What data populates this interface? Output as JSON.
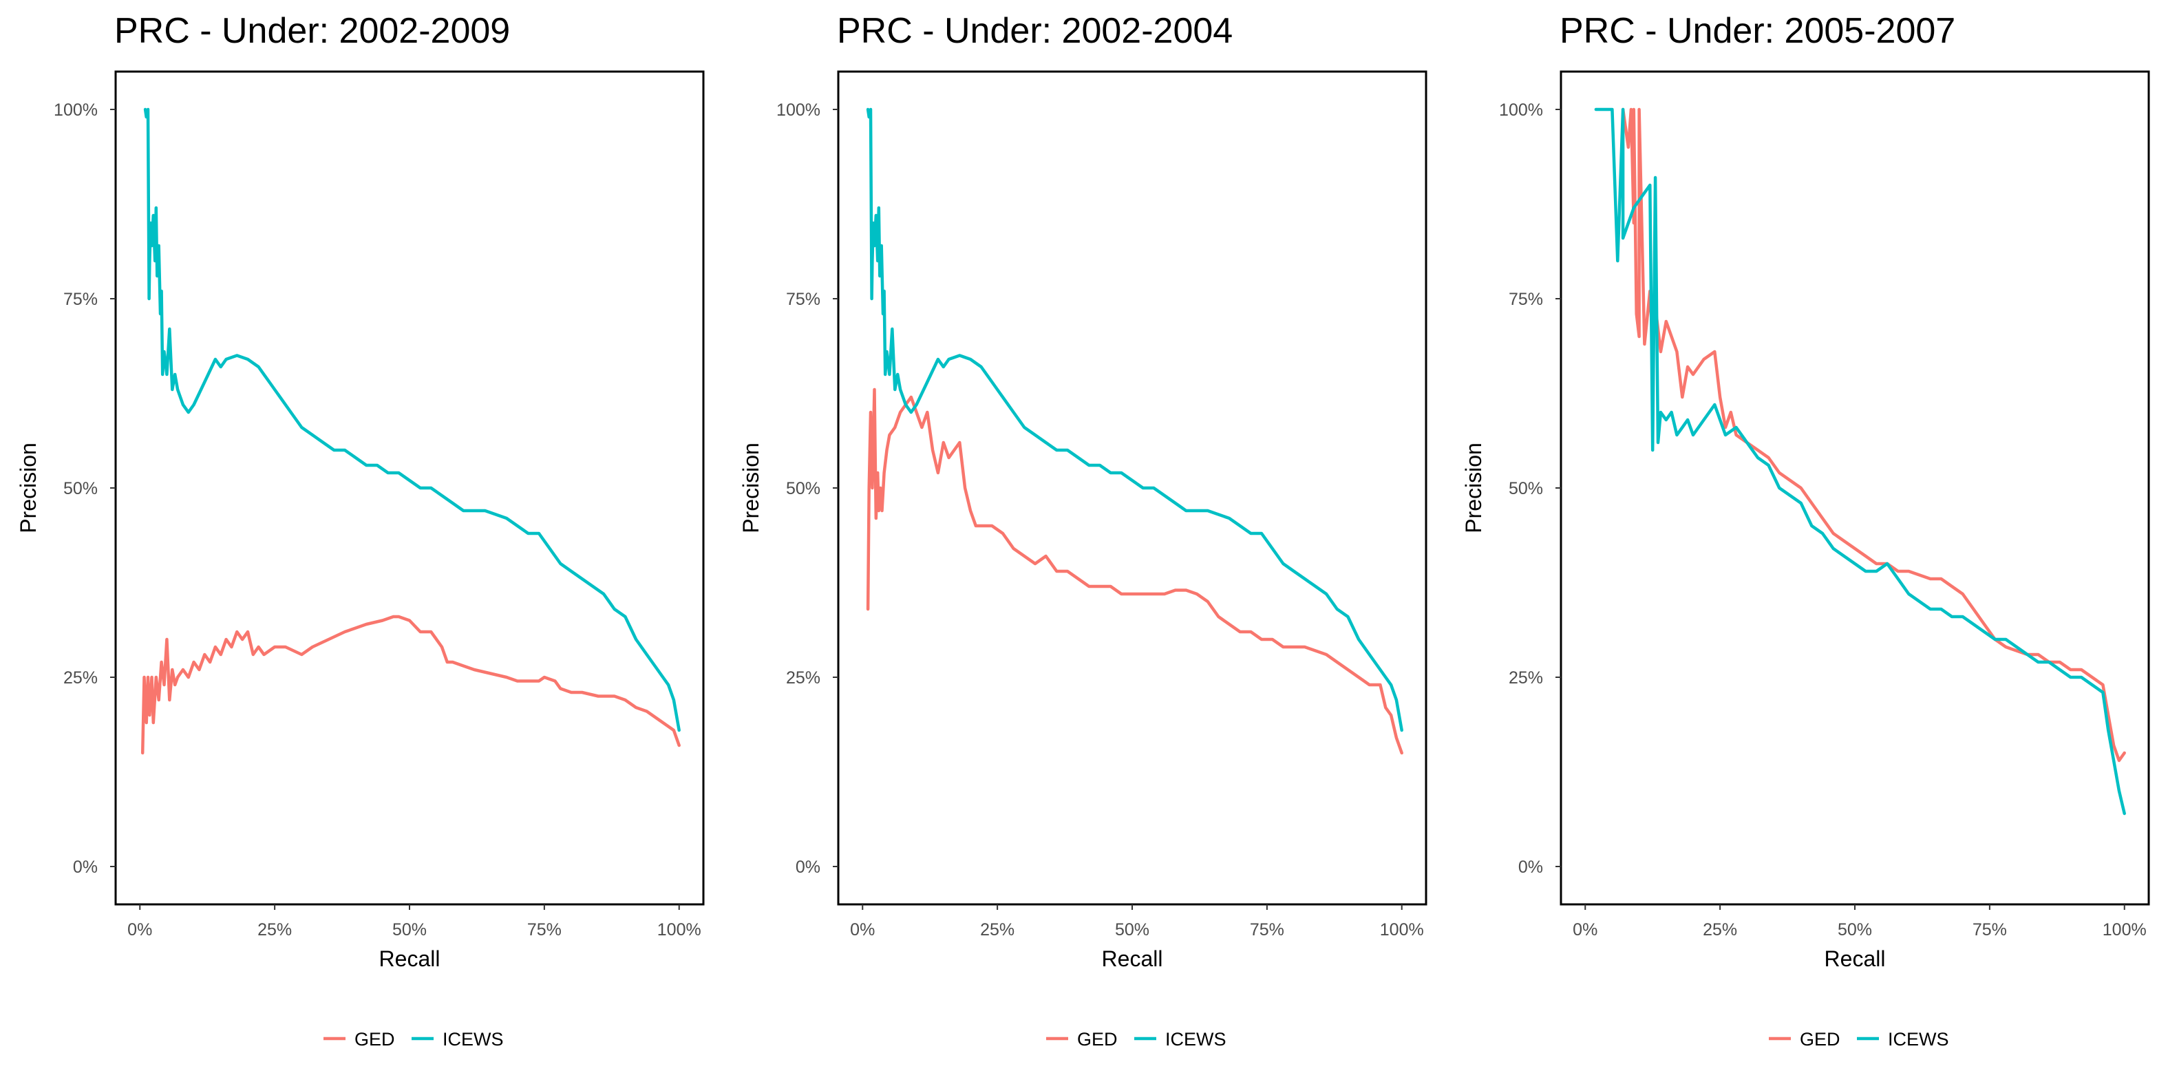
{
  "colors": {
    "GED": "#F8766D",
    "ICEWS": "#00BFC4"
  },
  "chart_data": [
    {
      "type": "line",
      "title": "PRC - Under: 2002-2009",
      "xlabel": "Recall",
      "ylabel": "Precision",
      "xlim": [
        -0.045,
        1.045
      ],
      "ylim": [
        -0.05,
        1.05
      ],
      "x_ticks": [
        0,
        0.25,
        0.5,
        0.75,
        1
      ],
      "x_tick_labels": [
        "0%",
        "25%",
        "50%",
        "75%",
        "100%"
      ],
      "y_ticks": [
        0,
        0.25,
        0.5,
        0.75,
        1
      ],
      "y_tick_labels": [
        "0%",
        "25%",
        "50%",
        "75%",
        "100%"
      ],
      "grid": false,
      "legend_position": "bottom",
      "legend": [
        "GED",
        "ICEWS"
      ],
      "series": [
        {
          "name": "GED",
          "x": [
            0.005,
            0.008,
            0.012,
            0.015,
            0.018,
            0.022,
            0.025,
            0.03,
            0.035,
            0.04,
            0.045,
            0.05,
            0.055,
            0.06,
            0.065,
            0.07,
            0.08,
            0.09,
            0.1,
            0.11,
            0.12,
            0.13,
            0.14,
            0.15,
            0.16,
            0.17,
            0.18,
            0.19,
            0.2,
            0.21,
            0.22,
            0.23,
            0.25,
            0.27,
            0.3,
            0.32,
            0.35,
            0.38,
            0.4,
            0.42,
            0.45,
            0.47,
            0.48,
            0.5,
            0.52,
            0.54,
            0.55,
            0.56,
            0.57,
            0.58,
            0.6,
            0.62,
            0.65,
            0.68,
            0.7,
            0.72,
            0.74,
            0.75,
            0.77,
            0.78,
            0.8,
            0.82,
            0.85,
            0.88,
            0.9,
            0.92,
            0.94,
            0.96,
            0.98,
            0.99,
            1.0
          ],
          "y": [
            0.15,
            0.25,
            0.19,
            0.25,
            0.2,
            0.25,
            0.19,
            0.25,
            0.22,
            0.27,
            0.24,
            0.3,
            0.22,
            0.26,
            0.24,
            0.25,
            0.26,
            0.25,
            0.27,
            0.26,
            0.28,
            0.27,
            0.29,
            0.28,
            0.3,
            0.29,
            0.31,
            0.3,
            0.31,
            0.28,
            0.29,
            0.28,
            0.29,
            0.29,
            0.28,
            0.29,
            0.3,
            0.31,
            0.315,
            0.32,
            0.325,
            0.33,
            0.33,
            0.325,
            0.31,
            0.31,
            0.3,
            0.29,
            0.27,
            0.27,
            0.265,
            0.26,
            0.255,
            0.25,
            0.245,
            0.245,
            0.245,
            0.25,
            0.245,
            0.235,
            0.23,
            0.23,
            0.225,
            0.225,
            0.22,
            0.21,
            0.205,
            0.195,
            0.185,
            0.18,
            0.16
          ]
        },
        {
          "name": "ICEWS",
          "x": [
            0.01,
            0.012,
            0.015,
            0.017,
            0.018,
            0.02,
            0.022,
            0.025,
            0.028,
            0.03,
            0.032,
            0.035,
            0.038,
            0.04,
            0.042,
            0.045,
            0.05,
            0.055,
            0.06,
            0.065,
            0.07,
            0.08,
            0.09,
            0.1,
            0.12,
            0.14,
            0.15,
            0.16,
            0.18,
            0.2,
            0.22,
            0.24,
            0.25,
            0.26,
            0.28,
            0.3,
            0.32,
            0.34,
            0.36,
            0.38,
            0.4,
            0.42,
            0.44,
            0.46,
            0.48,
            0.5,
            0.52,
            0.54,
            0.56,
            0.58,
            0.6,
            0.62,
            0.64,
            0.66,
            0.68,
            0.7,
            0.72,
            0.74,
            0.76,
            0.78,
            0.8,
            0.82,
            0.84,
            0.86,
            0.88,
            0.9,
            0.92,
            0.94,
            0.96,
            0.97,
            0.98,
            0.99,
            1.0
          ],
          "y": [
            1.0,
            0.99,
            1.0,
            0.75,
            0.8,
            0.85,
            0.82,
            0.86,
            0.8,
            0.87,
            0.78,
            0.82,
            0.73,
            0.76,
            0.65,
            0.68,
            0.65,
            0.71,
            0.63,
            0.65,
            0.63,
            0.61,
            0.6,
            0.61,
            0.64,
            0.67,
            0.66,
            0.67,
            0.675,
            0.67,
            0.66,
            0.64,
            0.63,
            0.62,
            0.6,
            0.58,
            0.57,
            0.56,
            0.55,
            0.55,
            0.54,
            0.53,
            0.53,
            0.52,
            0.52,
            0.51,
            0.5,
            0.5,
            0.49,
            0.48,
            0.47,
            0.47,
            0.47,
            0.465,
            0.46,
            0.45,
            0.44,
            0.44,
            0.42,
            0.4,
            0.39,
            0.38,
            0.37,
            0.36,
            0.34,
            0.33,
            0.3,
            0.28,
            0.26,
            0.25,
            0.24,
            0.22,
            0.18
          ]
        }
      ]
    },
    {
      "type": "line",
      "title": "PRC - Under: 2002-2004",
      "xlabel": "Recall",
      "ylabel": "Precision",
      "xlim": [
        -0.045,
        1.045
      ],
      "ylim": [
        -0.05,
        1.05
      ],
      "x_ticks": [
        0,
        0.25,
        0.5,
        0.75,
        1
      ],
      "x_tick_labels": [
        "0%",
        "25%",
        "50%",
        "75%",
        "100%"
      ],
      "y_ticks": [
        0,
        0.25,
        0.5,
        0.75,
        1
      ],
      "y_tick_labels": [
        "0%",
        "25%",
        "50%",
        "75%",
        "100%"
      ],
      "grid": false,
      "legend_position": "bottom",
      "legend": [
        "GED",
        "ICEWS"
      ],
      "series": [
        {
          "name": "GED",
          "x": [
            0.01,
            0.012,
            0.015,
            0.018,
            0.022,
            0.025,
            0.028,
            0.03,
            0.033,
            0.036,
            0.04,
            0.045,
            0.05,
            0.06,
            0.07,
            0.08,
            0.09,
            0.1,
            0.11,
            0.12,
            0.13,
            0.14,
            0.15,
            0.16,
            0.17,
            0.18,
            0.19,
            0.2,
            0.21,
            0.22,
            0.24,
            0.26,
            0.28,
            0.3,
            0.32,
            0.34,
            0.36,
            0.38,
            0.4,
            0.42,
            0.44,
            0.46,
            0.48,
            0.5,
            0.52,
            0.54,
            0.56,
            0.58,
            0.6,
            0.62,
            0.64,
            0.66,
            0.68,
            0.7,
            0.72,
            0.74,
            0.76,
            0.78,
            0.8,
            0.82,
            0.84,
            0.86,
            0.88,
            0.9,
            0.92,
            0.94,
            0.96,
            0.97,
            0.98,
            0.99,
            1.0
          ],
          "y": [
            0.34,
            0.5,
            0.6,
            0.5,
            0.63,
            0.46,
            0.52,
            0.47,
            0.5,
            0.47,
            0.52,
            0.55,
            0.57,
            0.58,
            0.6,
            0.61,
            0.62,
            0.6,
            0.58,
            0.6,
            0.55,
            0.52,
            0.56,
            0.54,
            0.55,
            0.56,
            0.5,
            0.47,
            0.45,
            0.45,
            0.45,
            0.44,
            0.42,
            0.41,
            0.4,
            0.41,
            0.39,
            0.39,
            0.38,
            0.37,
            0.37,
            0.37,
            0.36,
            0.36,
            0.36,
            0.36,
            0.36,
            0.365,
            0.365,
            0.36,
            0.35,
            0.33,
            0.32,
            0.31,
            0.31,
            0.3,
            0.3,
            0.29,
            0.29,
            0.29,
            0.285,
            0.28,
            0.27,
            0.26,
            0.25,
            0.24,
            0.24,
            0.21,
            0.2,
            0.17,
            0.15
          ]
        },
        {
          "name": "ICEWS",
          "x": [
            0.01,
            0.012,
            0.015,
            0.017,
            0.018,
            0.02,
            0.022,
            0.025,
            0.028,
            0.03,
            0.032,
            0.035,
            0.038,
            0.04,
            0.042,
            0.045,
            0.05,
            0.055,
            0.06,
            0.065,
            0.07,
            0.08,
            0.09,
            0.1,
            0.12,
            0.14,
            0.15,
            0.16,
            0.18,
            0.2,
            0.22,
            0.24,
            0.25,
            0.26,
            0.28,
            0.3,
            0.32,
            0.34,
            0.36,
            0.38,
            0.4,
            0.42,
            0.44,
            0.46,
            0.48,
            0.5,
            0.52,
            0.54,
            0.56,
            0.58,
            0.6,
            0.62,
            0.64,
            0.66,
            0.68,
            0.7,
            0.72,
            0.74,
            0.76,
            0.78,
            0.8,
            0.82,
            0.84,
            0.86,
            0.88,
            0.9,
            0.92,
            0.94,
            0.96,
            0.97,
            0.98,
            0.99,
            1.0
          ],
          "y": [
            1.0,
            0.99,
            1.0,
            0.75,
            0.8,
            0.85,
            0.82,
            0.86,
            0.8,
            0.87,
            0.78,
            0.82,
            0.73,
            0.76,
            0.65,
            0.68,
            0.65,
            0.71,
            0.63,
            0.65,
            0.63,
            0.61,
            0.6,
            0.61,
            0.64,
            0.67,
            0.66,
            0.67,
            0.675,
            0.67,
            0.66,
            0.64,
            0.63,
            0.62,
            0.6,
            0.58,
            0.57,
            0.56,
            0.55,
            0.55,
            0.54,
            0.53,
            0.53,
            0.52,
            0.52,
            0.51,
            0.5,
            0.5,
            0.49,
            0.48,
            0.47,
            0.47,
            0.47,
            0.465,
            0.46,
            0.45,
            0.44,
            0.44,
            0.42,
            0.4,
            0.39,
            0.38,
            0.37,
            0.36,
            0.34,
            0.33,
            0.3,
            0.28,
            0.26,
            0.25,
            0.24,
            0.22,
            0.18
          ]
        }
      ]
    },
    {
      "type": "line",
      "title": "PRC - Under: 2005-2007",
      "xlabel": "Recall",
      "ylabel": "Precision",
      "xlim": [
        -0.045,
        1.045
      ],
      "ylim": [
        -0.05,
        1.05
      ],
      "x_ticks": [
        0,
        0.25,
        0.5,
        0.75,
        1
      ],
      "x_tick_labels": [
        "0%",
        "25%",
        "50%",
        "75%",
        "100%"
      ],
      "y_ticks": [
        0,
        0.25,
        0.5,
        0.75,
        1
      ],
      "y_tick_labels": [
        "0%",
        "25%",
        "50%",
        "75%",
        "100%"
      ],
      "grid": false,
      "legend_position": "bottom",
      "legend": [
        "GED",
        "ICEWS"
      ],
      "series": [
        {
          "name": "GED",
          "x": [
            0.07,
            0.08,
            0.085,
            0.09,
            0.09,
            0.095,
            0.1,
            0.1,
            0.11,
            0.12,
            0.125,
            0.13,
            0.14,
            0.15,
            0.16,
            0.17,
            0.18,
            0.19,
            0.2,
            0.22,
            0.24,
            0.25,
            0.26,
            0.27,
            0.28,
            0.3,
            0.32,
            0.34,
            0.36,
            0.38,
            0.4,
            0.42,
            0.44,
            0.46,
            0.48,
            0.5,
            0.52,
            0.54,
            0.56,
            0.58,
            0.6,
            0.62,
            0.64,
            0.66,
            0.68,
            0.7,
            0.72,
            0.74,
            0.76,
            0.78,
            0.8,
            0.82,
            0.84,
            0.86,
            0.88,
            0.9,
            0.92,
            0.94,
            0.96,
            0.97,
            0.98,
            0.99,
            1.0
          ],
          "y": [
            1.0,
            0.95,
            1.0,
            0.85,
            1.0,
            0.73,
            0.7,
            1.0,
            0.69,
            0.76,
            0.69,
            0.74,
            0.68,
            0.72,
            0.7,
            0.68,
            0.62,
            0.66,
            0.65,
            0.67,
            0.68,
            0.62,
            0.58,
            0.6,
            0.57,
            0.56,
            0.55,
            0.54,
            0.52,
            0.51,
            0.5,
            0.48,
            0.46,
            0.44,
            0.43,
            0.42,
            0.41,
            0.4,
            0.4,
            0.39,
            0.39,
            0.385,
            0.38,
            0.38,
            0.37,
            0.36,
            0.34,
            0.32,
            0.3,
            0.29,
            0.285,
            0.28,
            0.28,
            0.27,
            0.27,
            0.26,
            0.26,
            0.25,
            0.24,
            0.2,
            0.16,
            0.14,
            0.15
          ]
        },
        {
          "name": "ICEWS",
          "x": [
            0.02,
            0.05,
            0.06,
            0.07,
            0.07,
            0.08,
            0.09,
            0.1,
            0.11,
            0.12,
            0.125,
            0.13,
            0.135,
            0.14,
            0.15,
            0.16,
            0.17,
            0.18,
            0.19,
            0.2,
            0.22,
            0.24,
            0.26,
            0.28,
            0.3,
            0.32,
            0.34,
            0.36,
            0.38,
            0.4,
            0.42,
            0.44,
            0.46,
            0.48,
            0.5,
            0.52,
            0.54,
            0.56,
            0.58,
            0.6,
            0.62,
            0.64,
            0.66,
            0.68,
            0.7,
            0.72,
            0.74,
            0.76,
            0.78,
            0.8,
            0.82,
            0.84,
            0.86,
            0.88,
            0.9,
            0.92,
            0.94,
            0.96,
            0.97,
            0.98,
            0.99,
            1.0
          ],
          "y": [
            1.0,
            1.0,
            0.8,
            1.0,
            0.83,
            0.85,
            0.87,
            0.88,
            0.89,
            0.9,
            0.55,
            0.91,
            0.56,
            0.6,
            0.59,
            0.6,
            0.57,
            0.58,
            0.59,
            0.57,
            0.59,
            0.61,
            0.57,
            0.58,
            0.56,
            0.54,
            0.53,
            0.5,
            0.49,
            0.48,
            0.45,
            0.44,
            0.42,
            0.41,
            0.4,
            0.39,
            0.39,
            0.4,
            0.38,
            0.36,
            0.35,
            0.34,
            0.34,
            0.33,
            0.33,
            0.32,
            0.31,
            0.3,
            0.3,
            0.29,
            0.28,
            0.27,
            0.27,
            0.26,
            0.25,
            0.25,
            0.24,
            0.23,
            0.18,
            0.14,
            0.1,
            0.07
          ]
        }
      ]
    }
  ]
}
